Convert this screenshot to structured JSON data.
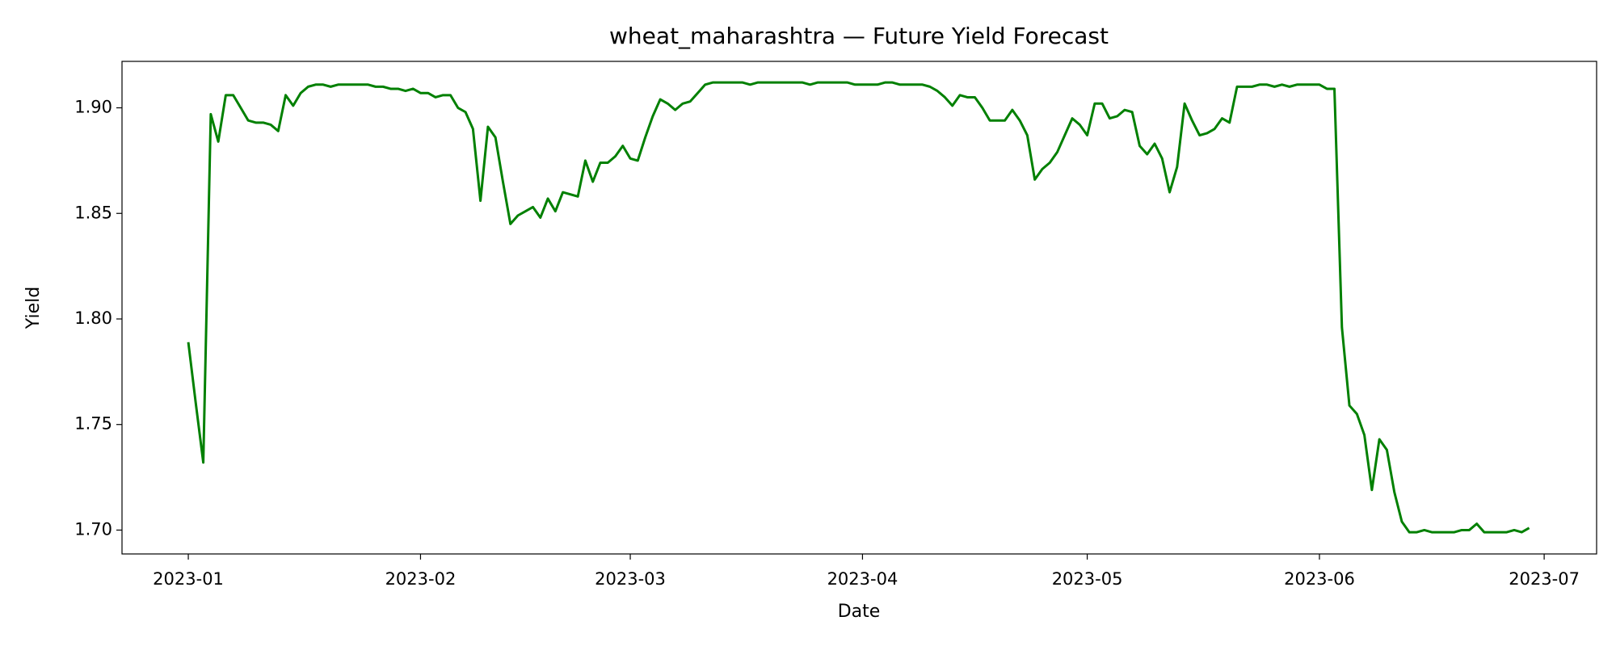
{
  "chart_data": {
    "type": "line",
    "title": "wheat_maharashtra — Future Yield Forecast",
    "xlabel": "Date",
    "ylabel": "Yield",
    "color": "#008000",
    "x": [
      0,
      1,
      2,
      3,
      4,
      5,
      6,
      7,
      8,
      9,
      10,
      11,
      12,
      13,
      14,
      15,
      16,
      17,
      18,
      19,
      20,
      21,
      22,
      23,
      24,
      25,
      26,
      27,
      28,
      29,
      30,
      31,
      32,
      33,
      34,
      35,
      36,
      37,
      38,
      39,
      40,
      41,
      42,
      43,
      44,
      45,
      46,
      47,
      48,
      49,
      50,
      51,
      52,
      53,
      54,
      55,
      56,
      57,
      58,
      59,
      60,
      61,
      62,
      63,
      64,
      65,
      66,
      67,
      68,
      69,
      70,
      71,
      72,
      73,
      74,
      75,
      76,
      77,
      78,
      79,
      80,
      81,
      82,
      83,
      84,
      85,
      86,
      87,
      88,
      89,
      90,
      91,
      92,
      93,
      94,
      95,
      96,
      97,
      98,
      99,
      100,
      101,
      102,
      103,
      104,
      105,
      106,
      107,
      108,
      109,
      110,
      111,
      112,
      113,
      114,
      115,
      116,
      117,
      118,
      119,
      120,
      121,
      122,
      123,
      124,
      125,
      126,
      127,
      128,
      129,
      130,
      131,
      132,
      133,
      134,
      135,
      136,
      137,
      138,
      139,
      140,
      141,
      142,
      143,
      144,
      145,
      146,
      147,
      148,
      149,
      150,
      151,
      152,
      153,
      154,
      155,
      156,
      157,
      158,
      159,
      160,
      161,
      162,
      163,
      164,
      165,
      166,
      167,
      168,
      169,
      170,
      171,
      172,
      173,
      174,
      175,
      176,
      177,
      178,
      179
    ],
    "values": [
      1.789,
      1.76,
      1.732,
      1.897,
      1.884,
      1.906,
      1.906,
      1.9,
      1.894,
      1.893,
      1.893,
      1.892,
      1.889,
      1.906,
      1.901,
      1.907,
      1.91,
      1.911,
      1.911,
      1.91,
      1.911,
      1.911,
      1.911,
      1.911,
      1.911,
      1.91,
      1.91,
      1.909,
      1.909,
      1.908,
      1.909,
      1.907,
      1.907,
      1.905,
      1.906,
      1.906,
      1.9,
      1.898,
      1.89,
      1.856,
      1.891,
      1.886,
      1.865,
      1.845,
      1.849,
      1.851,
      1.853,
      1.848,
      1.857,
      1.851,
      1.86,
      1.859,
      1.858,
      1.875,
      1.865,
      1.874,
      1.874,
      1.877,
      1.882,
      1.876,
      1.875,
      1.886,
      1.896,
      1.904,
      1.902,
      1.899,
      1.902,
      1.903,
      1.907,
      1.911,
      1.912,
      1.912,
      1.912,
      1.912,
      1.912,
      1.911,
      1.912,
      1.912,
      1.912,
      1.912,
      1.912,
      1.912,
      1.912,
      1.911,
      1.912,
      1.912,
      1.912,
      1.912,
      1.912,
      1.911,
      1.911,
      1.911,
      1.911,
      1.912,
      1.912,
      1.911,
      1.911,
      1.911,
      1.911,
      1.91,
      1.908,
      1.905,
      1.901,
      1.906,
      1.905,
      1.905,
      1.9,
      1.894,
      1.894,
      1.894,
      1.899,
      1.894,
      1.887,
      1.866,
      1.871,
      1.874,
      1.879,
      1.887,
      1.895,
      1.892,
      1.887,
      1.902,
      1.902,
      1.895,
      1.896,
      1.899,
      1.898,
      1.882,
      1.878,
      1.883,
      1.876,
      1.86,
      1.872,
      1.902,
      1.894,
      1.887,
      1.888,
      1.89,
      1.895,
      1.893,
      1.91,
      1.91,
      1.91,
      1.911,
      1.911,
      1.91,
      1.911,
      1.91,
      1.911,
      1.911,
      1.911,
      1.911,
      1.909,
      1.909,
      1.796,
      1.759,
      1.755,
      1.745,
      1.719,
      1.743,
      1.738,
      1.718,
      1.704,
      1.699,
      1.699,
      1.7,
      1.699,
      1.699,
      1.699,
      1.699,
      1.7,
      1.7,
      1.703,
      1.699,
      1.699,
      1.699,
      1.699,
      1.7,
      1.699,
      1.701
    ],
    "xlim": [
      -8.85,
      188
    ],
    "xticks": [
      {
        "value": 0,
        "label": "2023-01"
      },
      {
        "value": 31,
        "label": "2023-02"
      },
      {
        "value": 59,
        "label": "2023-03"
      },
      {
        "value": 90,
        "label": "2023-04"
      },
      {
        "value": 120,
        "label": "2023-05"
      },
      {
        "value": 151,
        "label": "2023-06"
      },
      {
        "value": 181,
        "label": "2023-07"
      }
    ],
    "ylim": [
      1.6887,
      1.922
    ],
    "yticks": [
      {
        "value": 1.7,
        "label": "1.70"
      },
      1.75,
      {
        "value": 1.8,
        "label": "1.80"
      },
      1.85,
      {
        "value": 1.9,
        "label": "1.90"
      }
    ],
    "grid": false
  }
}
